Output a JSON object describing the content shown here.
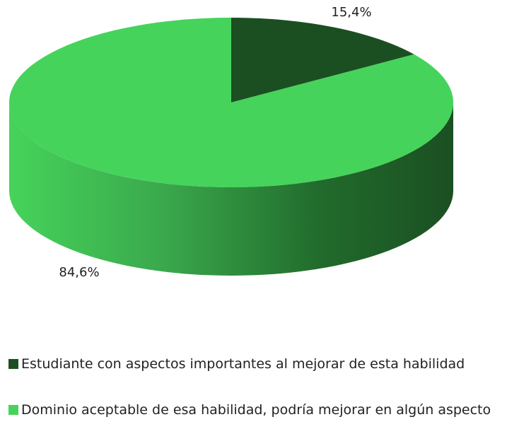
{
  "chart_data": {
    "type": "pie",
    "categories": [
      "Estudiante con aspectos importantes al mejorar de esta habilidad",
      "Dominio aceptable de esa habilidad, podría mejorar en algún aspecto"
    ],
    "values": [
      15.4,
      84.6
    ],
    "value_labels": [
      "15,4%",
      "84,6%"
    ],
    "colors": [
      "#1b4f22",
      "#46d35b"
    ]
  }
}
